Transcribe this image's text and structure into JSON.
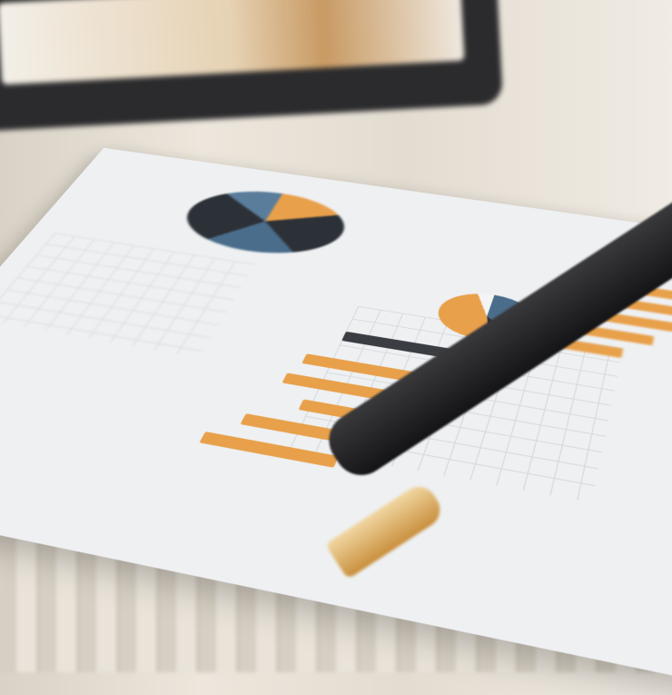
{
  "colors": {
    "accent_orange": "#e8a04a",
    "pie_blue": "#4a6d8c",
    "pie_dark": "#2c3137",
    "paper": "#eef0f2",
    "pen": "#1c1c1e",
    "pen_tip": "#d9a85a"
  },
  "charts": {
    "pie_top": "pie",
    "pie_middle": "pie",
    "bars": "horizontal-bar"
  }
}
